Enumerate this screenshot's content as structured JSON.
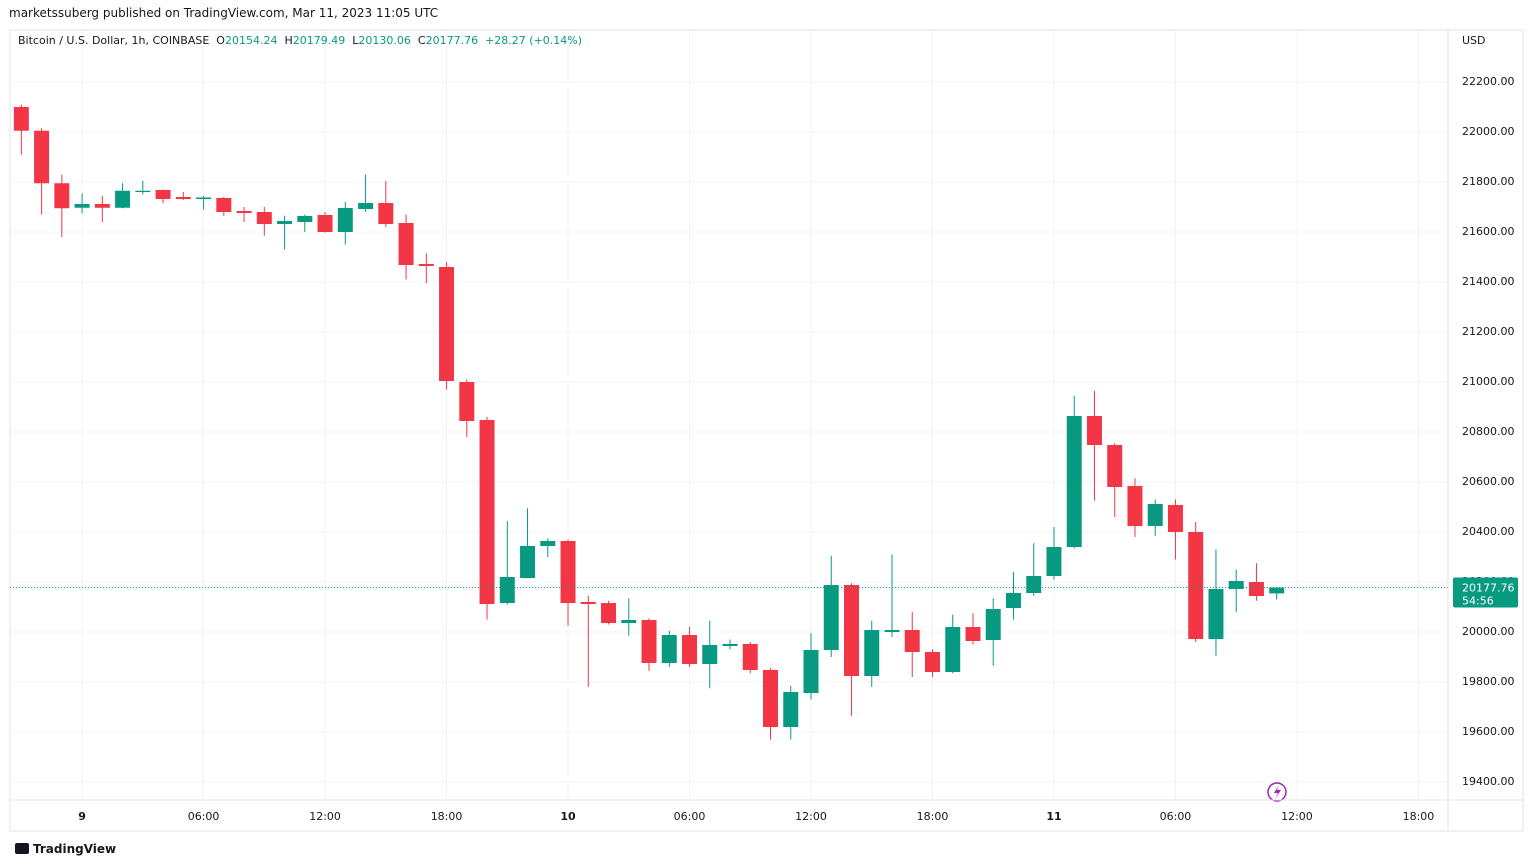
{
  "header": "marketssuberg published on TradingView.com, Mar 11, 2023 11:05 UTC",
  "footer": "TradingView",
  "chart_data": {
    "type": "candlestick",
    "title": "Bitcoin / U.S. Dollar, 1h, COINBASE",
    "currency": "USD",
    "legend_labels": {
      "open": "O",
      "high": "H",
      "low": "L",
      "close": "C"
    },
    "change": "+28.27 (+0.14%)",
    "countdown": "54:56",
    "up_color": "#089981",
    "down_color": "#f23645",
    "grid": true,
    "x": [
      -3,
      -2,
      -1,
      0,
      1,
      2,
      3,
      4,
      5,
      6,
      7,
      8,
      9,
      10,
      11,
      12,
      13,
      14,
      15,
      16,
      17,
      18,
      19,
      20,
      21,
      22,
      23,
      24,
      25,
      26,
      27,
      28,
      29,
      30,
      31,
      32,
      33,
      34,
      35,
      36,
      37,
      38,
      39,
      40,
      41,
      42,
      43,
      44,
      45,
      46,
      47,
      48,
      49,
      50,
      51,
      52,
      53,
      54,
      55,
      56,
      57,
      58,
      59
    ],
    "open": [
      22100,
      22005,
      21795,
      21697,
      21712,
      21697,
      21760,
      21768,
      21740,
      21732,
      21736,
      21684,
      21680,
      21632,
      21640,
      21668,
      21600,
      21692,
      21716,
      21636,
      21472,
      21460,
      21000,
      20848,
      20116,
      20216,
      20344,
      20364,
      20120,
      20116,
      20036,
      20048,
      19876,
      19988,
      19872,
      19944,
      19952,
      19848,
      19620,
      19756,
      19928,
      20188,
      19824,
      20000,
      20008,
      19920,
      19840,
      20020,
      19968,
      20096,
      20156,
      20224,
      20340,
      20864,
      20748,
      20584,
      20424,
      20508,
      20400,
      19972,
      20172,
      20200,
      20154.24
    ],
    "high": [
      22110,
      22015,
      21830,
      21755,
      21745,
      21795,
      21805,
      21770,
      21760,
      21745,
      21740,
      21700,
      21700,
      21665,
      21670,
      21680,
      21720,
      21830,
      21805,
      21670,
      21515,
      21480,
      21010,
      20860,
      20445,
      20495,
      20375,
      20370,
      20145,
      20125,
      20135,
      20055,
      20005,
      20020,
      20045,
      19970,
      19960,
      19855,
      19785,
      19995,
      20305,
      20195,
      20045,
      20310,
      20080,
      19930,
      20070,
      20075,
      20135,
      20240,
      20355,
      20420,
      20945,
      20965,
      20755,
      20615,
      20530,
      20530,
      20440,
      20330,
      20250,
      20275,
      20179.49
    ],
    "low": [
      21910,
      21670,
      21580,
      21675,
      21640,
      21695,
      21750,
      21715,
      21728,
      21690,
      21665,
      21640,
      21585,
      21530,
      21600,
      21598,
      21550,
      21680,
      21620,
      21410,
      21395,
      20970,
      20780,
      20050,
      20110,
      20215,
      20300,
      20025,
      19780,
      20030,
      19985,
      19845,
      19860,
      19860,
      19775,
      19930,
      19835,
      19570,
      19570,
      19730,
      19900,
      19665,
      19780,
      19980,
      19820,
      19820,
      19835,
      19950,
      19865,
      20050,
      20145,
      20210,
      20335,
      20525,
      20460,
      20380,
      20385,
      20290,
      19960,
      19905,
      20080,
      20125,
      20130.06
    ],
    "close": [
      22005,
      21795,
      21695,
      21712,
      21697,
      21765,
      21765,
      21732,
      21732,
      21738,
      21680,
      21676,
      21632,
      21644,
      21664,
      21600,
      21696,
      21716,
      21632,
      21468,
      21464,
      21004,
      20844,
      20112,
      20220,
      20344,
      20364,
      20116,
      20112,
      20036,
      20048,
      19876,
      19988,
      19872,
      19948,
      19952,
      19848,
      19620,
      19760,
      19928,
      20188,
      19824,
      20008,
      20008,
      19920,
      19840,
      20020,
      19964,
      20092,
      20156,
      20224,
      20340,
      20864,
      20748,
      20580,
      20424,
      20512,
      20400,
      19972,
      20172,
      20204,
      20144,
      20177.76
    ],
    "xlim": [
      -3.56,
      67.46
    ],
    "xticks": [
      {
        "value": 0,
        "label": "9"
      },
      {
        "value": 6,
        "label": "06:00"
      },
      {
        "value": 12,
        "label": "12:00"
      },
      {
        "value": 18,
        "label": "18:00"
      },
      {
        "value": 24,
        "label": "10"
      },
      {
        "value": 30,
        "label": "06:00"
      },
      {
        "value": 36,
        "label": "12:00"
      },
      {
        "value": 42,
        "label": "18:00"
      },
      {
        "value": 48,
        "label": "11"
      },
      {
        "value": 54,
        "label": "06:00"
      },
      {
        "value": 60,
        "label": "12:00"
      },
      {
        "value": 66,
        "label": "18:00"
      }
    ],
    "ylim": [
      19328,
      22408
    ],
    "yticks": [
      {
        "value": 19400,
        "label": "19400.00"
      },
      {
        "value": 19600,
        "label": "19600.00"
      },
      {
        "value": 19800,
        "label": "19800.00"
      },
      {
        "value": 20000,
        "label": "20000.00"
      },
      {
        "value": 20200,
        "label": "20200.00"
      },
      {
        "value": 20400,
        "label": "20400.00"
      },
      {
        "value": 20600,
        "label": "20600.00"
      },
      {
        "value": 20800,
        "label": "20800.00"
      },
      {
        "value": 21000,
        "label": "21000.00"
      },
      {
        "value": 21200,
        "label": "21200.00"
      },
      {
        "value": 21400,
        "label": "21400.00"
      },
      {
        "value": 21600,
        "label": "21600.00"
      },
      {
        "value": 21800,
        "label": "21800.00"
      },
      {
        "value": 22000,
        "label": "22000.00"
      },
      {
        "value": 22200,
        "label": "22200.00"
      }
    ]
  }
}
